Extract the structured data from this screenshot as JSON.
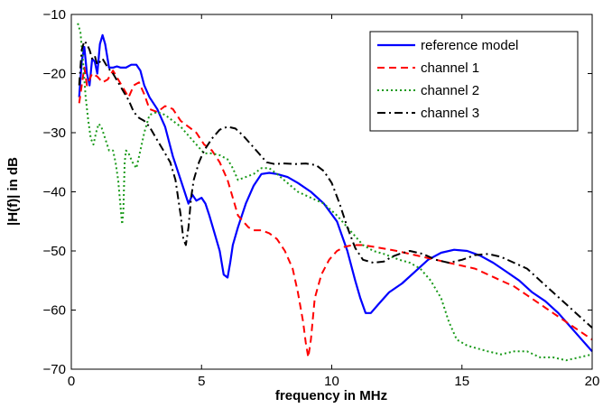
{
  "chart_data": {
    "type": "line",
    "title": "",
    "xlabel": "frequency in MHz",
    "ylabel": "|H(f)| in dB",
    "xlim": [
      0,
      20
    ],
    "ylim": [
      -70,
      -10
    ],
    "xticks": [
      0,
      5,
      10,
      15,
      20
    ],
    "yticks": [
      -10,
      -20,
      -30,
      -40,
      -50,
      -60,
      -70
    ],
    "grid": false,
    "legend_position": "top-right",
    "series": [
      {
        "name": "reference model",
        "color": "#0000ff",
        "dash": "solid",
        "x": [
          0.3,
          0.4,
          0.5,
          0.6,
          0.7,
          0.8,
          0.9,
          1.0,
          1.1,
          1.2,
          1.3,
          1.45,
          1.6,
          1.75,
          1.9,
          2.1,
          2.3,
          2.5,
          2.65,
          2.8,
          3.0,
          3.3,
          3.6,
          3.9,
          4.2,
          4.5,
          4.65,
          4.8,
          5.0,
          5.15,
          5.3,
          5.5,
          5.7,
          5.85,
          6.0,
          6.1,
          6.2,
          6.4,
          6.7,
          7.0,
          7.3,
          7.6,
          7.9,
          8.3,
          8.7,
          9.2,
          9.7,
          10.2,
          10.6,
          10.9,
          11.1,
          11.3,
          11.5,
          11.8,
          12.2,
          12.7,
          13.2,
          13.7,
          14.2,
          14.7,
          15.2,
          15.7,
          16.2,
          16.7,
          17.2,
          17.7,
          18.2,
          18.7,
          19.2,
          19.6,
          20.0
        ],
        "y": [
          -24,
          -18,
          -15.5,
          -20,
          -22,
          -17.5,
          -18,
          -20,
          -15,
          -13.5,
          -15,
          -19,
          -19,
          -18.8,
          -19,
          -19,
          -18.5,
          -18.5,
          -19.5,
          -22,
          -24,
          -26,
          -29,
          -34,
          -38,
          -42,
          -40.5,
          -41.5,
          -41,
          -42,
          -44,
          -47,
          -50,
          -54,
          -54.5,
          -52,
          -49,
          -46,
          -42,
          -39,
          -37,
          -36.8,
          -37,
          -37.5,
          -38.5,
          -40,
          -42,
          -45,
          -50,
          -55,
          -58,
          -60.5,
          -60.5,
          -59,
          -57,
          -55.5,
          -53.5,
          -51.5,
          -50.3,
          -49.8,
          -50,
          -50.8,
          -52,
          -53.5,
          -55,
          -57,
          -58.5,
          -60.5,
          -63,
          -65,
          -67
        ]
      },
      {
        "name": "channel 1",
        "color": "#ff0000",
        "dash": "dashed",
        "x": [
          0.3,
          0.4,
          0.5,
          0.6,
          0.8,
          1.0,
          1.2,
          1.4,
          1.6,
          1.8,
          2.0,
          2.2,
          2.4,
          2.6,
          2.8,
          3.0,
          3.3,
          3.6,
          3.9,
          4.2,
          4.5,
          4.8,
          5.1,
          5.4,
          5.7,
          6.0,
          6.2,
          6.4,
          6.6,
          6.8,
          7.0,
          7.3,
          7.6,
          7.9,
          8.2,
          8.5,
          8.7,
          8.9,
          9.0,
          9.1,
          9.2,
          9.35,
          9.6,
          9.9,
          10.2,
          10.5,
          10.8,
          11.2,
          11.6,
          12.0,
          12.5,
          13.0,
          13.5,
          14.0,
          14.5,
          15.0,
          15.5,
          16.0,
          16.5,
          17.0,
          17.5,
          18.0,
          18.5,
          19.0,
          19.5,
          20.0
        ],
        "y": [
          -25,
          -22,
          -19,
          -22,
          -20,
          -20.5,
          -21.5,
          -21,
          -19.5,
          -21,
          -22.5,
          -24,
          -22,
          -21.5,
          -23.5,
          -26,
          -26.5,
          -25.5,
          -26,
          -28,
          -29,
          -30,
          -32,
          -33,
          -35,
          -38,
          -41,
          -44,
          -45,
          -46,
          -46.5,
          -46.5,
          -47,
          -48,
          -50,
          -53,
          -57,
          -62,
          -65.5,
          -68,
          -65,
          -58,
          -54,
          -51.5,
          -50,
          -49.3,
          -49,
          -49,
          -49.3,
          -49.6,
          -50,
          -50.5,
          -51,
          -51.5,
          -52,
          -52.5,
          -53,
          -54,
          -55,
          -56,
          -57.5,
          -59,
          -60.5,
          -62,
          -63.5,
          -65
        ]
      },
      {
        "name": "channel 2",
        "color": "#1a9a1a",
        "dash": "dotted",
        "x": [
          0.25,
          0.35,
          0.45,
          0.55,
          0.65,
          0.75,
          0.85,
          0.95,
          1.05,
          1.15,
          1.3,
          1.45,
          1.6,
          1.7,
          1.8,
          1.9,
          1.95,
          2.0,
          2.05,
          2.1,
          2.2,
          2.35,
          2.5,
          2.65,
          2.8,
          3.0,
          3.3,
          3.6,
          3.9,
          4.2,
          4.5,
          4.8,
          5.1,
          5.4,
          5.7,
          6.0,
          6.2,
          6.4,
          6.7,
          7.0,
          7.3,
          7.6,
          7.9,
          8.3,
          8.7,
          9.2,
          9.7,
          10.2,
          10.7,
          11.2,
          11.6,
          12.0,
          12.3,
          12.6,
          13.0,
          13.4,
          13.8,
          14.2,
          14.5,
          14.8,
          15.2,
          15.6,
          16.0,
          16.5,
          17.0,
          17.5,
          18.0,
          18.5,
          19.0,
          19.5,
          20.0
        ],
        "y": [
          -11.5,
          -13,
          -18,
          -24,
          -28,
          -31,
          -32,
          -30,
          -28.5,
          -29,
          -31,
          -33,
          -33,
          -35,
          -38,
          -43,
          -45.5,
          -43,
          -35,
          -33,
          -33.5,
          -35,
          -36,
          -33,
          -30,
          -27,
          -26.5,
          -27,
          -28,
          -29,
          -30.5,
          -32,
          -33.5,
          -33.5,
          -33.8,
          -34.5,
          -36,
          -38,
          -37.5,
          -37,
          -36,
          -36,
          -37,
          -38.5,
          -40,
          -41,
          -42,
          -44,
          -46.5,
          -49,
          -50,
          -50.5,
          -51,
          -51.5,
          -52,
          -53,
          -55,
          -58,
          -62,
          -65,
          -66,
          -66.5,
          -67,
          -67.5,
          -67,
          -67,
          -68,
          -68,
          -68.5,
          -68,
          -67.5
        ]
      },
      {
        "name": "channel 3",
        "color": "#000000",
        "dash": "dashdot",
        "x": [
          0.3,
          0.4,
          0.5,
          0.6,
          0.7,
          0.8,
          0.9,
          1.0,
          1.1,
          1.2,
          1.4,
          1.6,
          1.8,
          2.0,
          2.2,
          2.4,
          2.6,
          2.8,
          3.0,
          3.2,
          3.4,
          3.6,
          3.8,
          4.0,
          4.1,
          4.2,
          4.3,
          4.4,
          4.5,
          4.6,
          4.7,
          4.9,
          5.1,
          5.4,
          5.7,
          6.0,
          6.3,
          6.6,
          6.9,
          7.2,
          7.5,
          7.8,
          8.2,
          8.6,
          9.0,
          9.4,
          9.7,
          10.0,
          10.3,
          10.6,
          10.9,
          11.2,
          11.6,
          12.0,
          12.3,
          12.6,
          13.0,
          13.5,
          14.0,
          14.5,
          15.0,
          15.5,
          16.0,
          16.5,
          17.0,
          17.5,
          18.0,
          18.5,
          19.0,
          19.5,
          20.0
        ],
        "y": [
          -22,
          -16,
          -14.5,
          -15,
          -16,
          -17.5,
          -17,
          -18.5,
          -18,
          -17.5,
          -19,
          -20,
          -21.5,
          -23,
          -24.5,
          -26.5,
          -27.5,
          -28,
          -29,
          -30.5,
          -32,
          -33.5,
          -35,
          -38,
          -41,
          -44,
          -48,
          -49,
          -46,
          -41,
          -38,
          -35,
          -33,
          -31,
          -29.5,
          -29,
          -29.3,
          -30.5,
          -32,
          -33.5,
          -35,
          -35.3,
          -35.2,
          -35.3,
          -35.2,
          -35.5,
          -36.5,
          -38.5,
          -42,
          -46,
          -49.5,
          -51.5,
          -52,
          -51.8,
          -51,
          -50.5,
          -50,
          -50.5,
          -51.5,
          -52,
          -51.5,
          -50.7,
          -50.5,
          -51,
          -52,
          -53,
          -55,
          -57,
          -59,
          -61,
          -63
        ]
      }
    ]
  }
}
